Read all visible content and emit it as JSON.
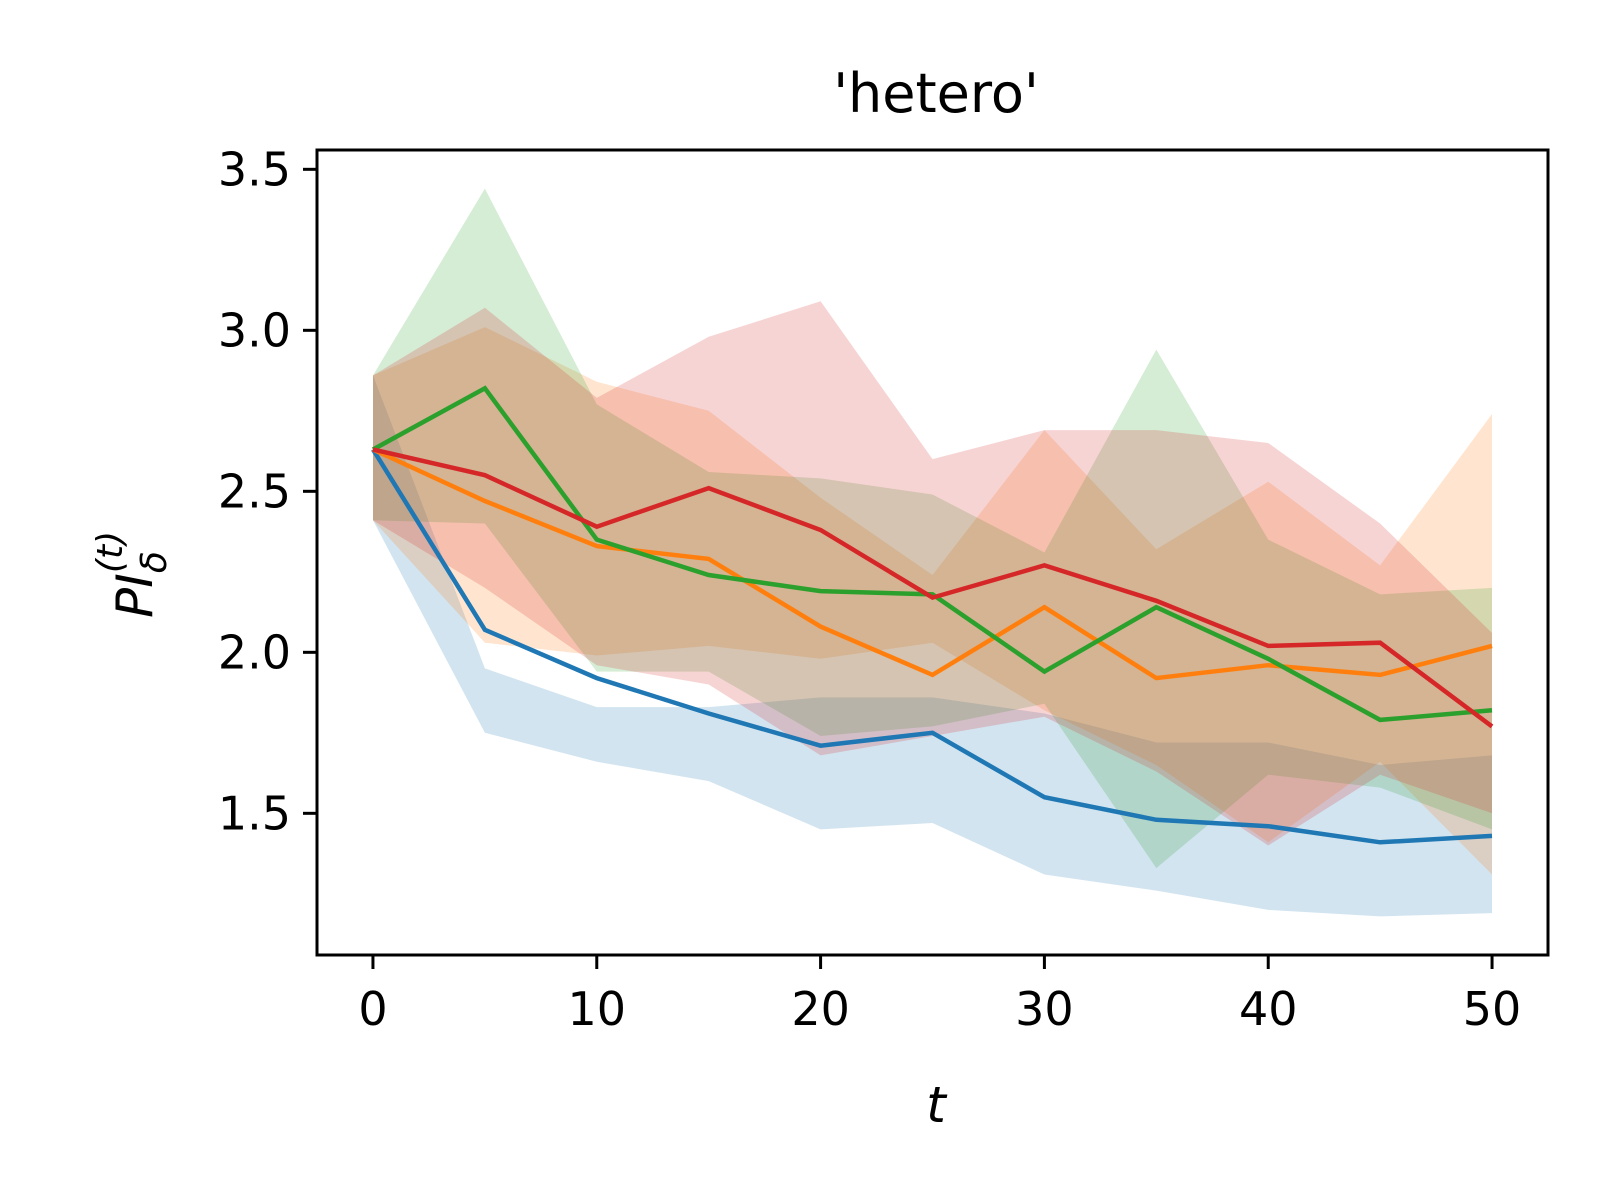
{
  "chart_data": {
    "type": "line",
    "title": "'hetero'",
    "xlabel": "t",
    "ylabel": {
      "main": "PI",
      "sub": "δ",
      "sup": "(t)"
    },
    "xlim": [
      -2.5,
      52.5
    ],
    "ylim": [
      1.06,
      3.56
    ],
    "xticks": [
      0,
      10,
      20,
      30,
      40,
      50
    ],
    "yticks": [
      1.5,
      2.0,
      2.5,
      3.0,
      3.5
    ],
    "xtick_labels": [
      "0",
      "10",
      "20",
      "30",
      "40",
      "50"
    ],
    "ytick_labels": [
      "1.5",
      "2.0",
      "2.5",
      "3.0",
      "3.5"
    ],
    "grid": false,
    "x": [
      0,
      5,
      10,
      15,
      20,
      25,
      30,
      35,
      40,
      45,
      50
    ],
    "series": [
      {
        "color": "#1f77b4",
        "values": [
          2.63,
          2.07,
          1.92,
          1.81,
          1.71,
          1.75,
          1.55,
          1.48,
          1.46,
          1.41,
          1.43
        ],
        "lower": [
          2.41,
          1.75,
          1.66,
          1.6,
          1.45,
          1.47,
          1.31,
          1.26,
          1.2,
          1.18,
          1.19
        ],
        "upper": [
          2.86,
          1.95,
          1.83,
          1.83,
          1.86,
          1.86,
          1.81,
          1.72,
          1.72,
          1.65,
          1.68
        ]
      },
      {
        "color": "#ff7f0e",
        "values": [
          2.63,
          2.47,
          2.33,
          2.29,
          2.08,
          1.93,
          2.14,
          1.92,
          1.96,
          1.93,
          2.02
        ],
        "lower": [
          2.41,
          2.03,
          1.99,
          2.02,
          1.98,
          2.03,
          1.82,
          1.65,
          1.41,
          1.66,
          1.31
        ],
        "upper": [
          2.86,
          3.01,
          2.84,
          2.75,
          2.48,
          2.24,
          2.69,
          2.32,
          2.53,
          2.27,
          2.74
        ]
      },
      {
        "color": "#2ca02c",
        "values": [
          2.63,
          2.82,
          2.35,
          2.24,
          2.19,
          2.18,
          1.94,
          2.14,
          1.98,
          1.79,
          1.82
        ],
        "lower": [
          2.41,
          2.4,
          1.94,
          1.94,
          1.74,
          1.77,
          1.84,
          1.33,
          1.62,
          1.58,
          1.45
        ],
        "upper": [
          2.86,
          3.44,
          2.77,
          2.56,
          2.54,
          2.49,
          2.31,
          2.94,
          2.35,
          2.18,
          2.2
        ]
      },
      {
        "color": "#d62728",
        "values": [
          2.63,
          2.55,
          2.39,
          2.51,
          2.38,
          2.17,
          2.27,
          2.16,
          2.02,
          2.03,
          1.77
        ],
        "lower": [
          2.41,
          2.2,
          1.96,
          1.9,
          1.68,
          1.74,
          1.8,
          1.63,
          1.4,
          1.62,
          1.5
        ],
        "upper": [
          2.86,
          3.07,
          2.79,
          2.98,
          3.09,
          2.6,
          2.69,
          2.69,
          2.65,
          2.4,
          2.06
        ]
      }
    ]
  }
}
